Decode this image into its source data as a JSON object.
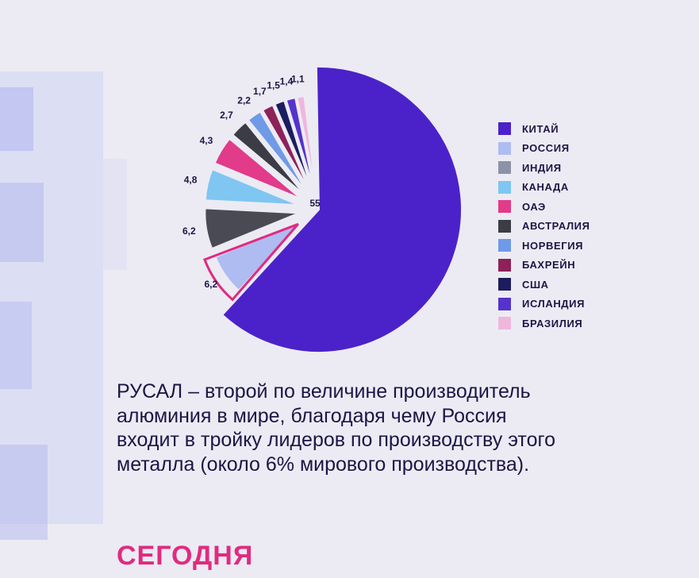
{
  "chart_data": {
    "type": "pie",
    "categories": [
      "КИТАЙ",
      "РОССИЯ",
      "ИНДИЯ",
      "КАНАДА",
      "ОАЭ",
      "АВСТРАЛИЯ",
      "НОРВЕГИЯ",
      "БАХРЕЙН",
      "США",
      "ИСЛАНДИЯ",
      "БРАЗИЛИЯ"
    ],
    "values": [
      55,
      6.2,
      6.2,
      4.8,
      4.3,
      2.7,
      2.2,
      1.7,
      1.5,
      1.4,
      1.1
    ],
    "value_labels": [
      "55",
      "6,2",
      "6,2",
      "4,8",
      "4,3",
      "2,7",
      "2,2",
      "1,7",
      "1,5",
      "1,4",
      "1,1"
    ],
    "colors": [
      "#4b22c9",
      "#aebcf2",
      "#4a4a55",
      "#7fc6f2",
      "#e13b8a",
      "#3c3c46",
      "#6e9ae8",
      "#8e2158",
      "#1c1d5e",
      "#5533cc",
      "#f0b6dc"
    ],
    "highlight_category": "РОССИЯ",
    "highlight_color": "#e02b80",
    "legend_position": "right",
    "title": "",
    "legend": {
      "items": [
        {
          "label": "КИТАЙ",
          "color": "#4b22c9"
        },
        {
          "label": "РОССИЯ",
          "color": "#aebcf2"
        },
        {
          "label": "ИНДИЯ",
          "color": "#8a93a8"
        },
        {
          "label": "КАНАДА",
          "color": "#7fc6f2"
        },
        {
          "label": "ОАЭ",
          "color": "#e13b8a"
        },
        {
          "label": "АВСТРАЛИЯ",
          "color": "#3c3c46"
        },
        {
          "label": "НОРВЕГИЯ",
          "color": "#6e9ae8"
        },
        {
          "label": "БАХРЕЙН",
          "color": "#8e2158"
        },
        {
          "label": "США",
          "color": "#1c1d5e"
        },
        {
          "label": "ИСЛАНДИЯ",
          "color": "#5533cc"
        },
        {
          "label": "БРАЗИЛИЯ",
          "color": "#f0b6dc"
        }
      ]
    }
  },
  "text": {
    "body": "РУСАЛ – второй по величине производитель алюминия в мире, благодаря чему Россия входит в тройку лидеров по производству этого металла (около 6% мирового производства).",
    "section_title": "СЕГОДНЯ"
  }
}
